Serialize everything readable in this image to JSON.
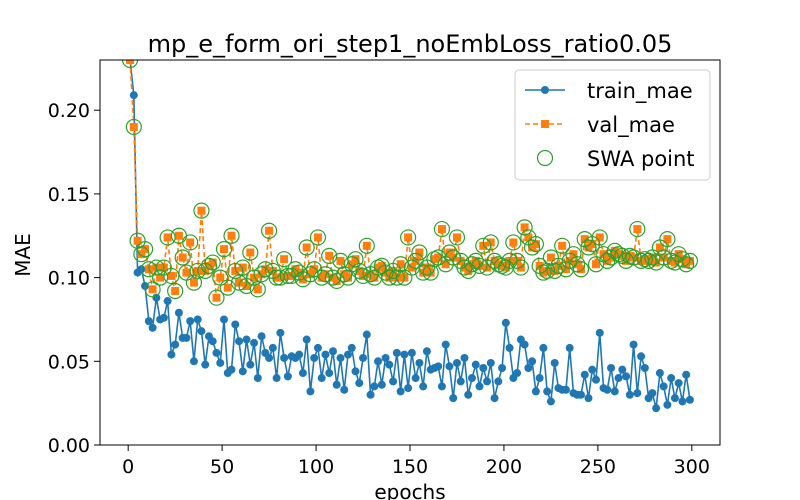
{
  "chart_data": {
    "type": "line",
    "title": "mp_e_form_ori_step1_noEmbLoss_ratio0.05",
    "xlabel": "epochs",
    "ylabel": "MAE",
    "xlim": [
      -15,
      315
    ],
    "ylim": [
      0.0,
      0.23
    ],
    "xticks": [
      0,
      50,
      100,
      150,
      200,
      250,
      300
    ],
    "xtick_labels": [
      "0",
      "50",
      "100",
      "150",
      "200",
      "250",
      "300"
    ],
    "yticks": [
      0.0,
      0.05,
      0.1,
      0.15,
      0.2
    ],
    "ytick_labels": [
      "0.00",
      "0.05",
      "0.10",
      "0.15",
      "0.20"
    ],
    "grid": false,
    "legend_position": "top-right",
    "series": [
      {
        "name": "train_mae",
        "color": "#1f77b4",
        "marker": "circle",
        "line_style": "solid",
        "x": [
          1,
          3,
          5,
          7,
          9,
          11,
          13,
          15,
          17,
          19,
          21,
          23,
          25,
          27,
          29,
          31,
          33,
          35,
          37,
          39,
          41,
          43,
          45,
          47,
          49,
          51,
          53,
          55,
          57,
          59,
          61,
          63,
          65,
          67,
          69,
          71,
          73,
          75,
          77,
          79,
          81,
          83,
          85,
          87,
          89,
          91,
          93,
          95,
          97,
          99,
          101,
          103,
          105,
          107,
          109,
          111,
          113,
          115,
          117,
          119,
          121,
          123,
          125,
          127,
          129,
          131,
          133,
          135,
          137,
          139,
          141,
          143,
          145,
          147,
          149,
          151,
          153,
          155,
          157,
          159,
          161,
          163,
          165,
          167,
          169,
          171,
          173,
          175,
          177,
          179,
          181,
          183,
          185,
          187,
          189,
          191,
          193,
          195,
          197,
          199,
          201,
          203,
          205,
          207,
          209,
          211,
          213,
          215,
          217,
          219,
          221,
          223,
          225,
          227,
          229,
          231,
          233,
          235,
          237,
          239,
          241,
          243,
          245,
          247,
          249,
          251,
          253,
          255,
          257,
          259,
          261,
          263,
          265,
          267,
          269,
          271,
          273,
          275,
          277,
          279,
          281,
          283,
          285,
          287,
          289,
          291,
          293,
          295,
          297,
          299
        ],
        "y": [
          0.23,
          0.209,
          0.103,
          0.105,
          0.095,
          0.074,
          0.07,
          0.088,
          0.075,
          0.076,
          0.086,
          0.054,
          0.06,
          0.079,
          0.064,
          0.064,
          0.074,
          0.05,
          0.075,
          0.068,
          0.048,
          0.065,
          0.062,
          0.055,
          0.049,
          0.075,
          0.043,
          0.045,
          0.072,
          0.062,
          0.044,
          0.063,
          0.048,
          0.061,
          0.04,
          0.065,
          0.055,
          0.052,
          0.058,
          0.04,
          0.067,
          0.052,
          0.041,
          0.053,
          0.052,
          0.054,
          0.043,
          0.063,
          0.032,
          0.052,
          0.058,
          0.04,
          0.054,
          0.043,
          0.056,
          0.036,
          0.052,
          0.033,
          0.054,
          0.058,
          0.044,
          0.037,
          0.052,
          0.066,
          0.03,
          0.035,
          0.05,
          0.036,
          0.052,
          0.048,
          0.038,
          0.055,
          0.032,
          0.054,
          0.034,
          0.055,
          0.04,
          0.049,
          0.035,
          0.056,
          0.045,
          0.046,
          0.047,
          0.035,
          0.06,
          0.047,
          0.028,
          0.049,
          0.038,
          0.052,
          0.03,
          0.04,
          0.048,
          0.035,
          0.046,
          0.038,
          0.049,
          0.028,
          0.038,
          0.046,
          0.073,
          0.058,
          0.04,
          0.043,
          0.063,
          0.06,
          0.046,
          0.05,
          0.032,
          0.04,
          0.058,
          0.032,
          0.026,
          0.049,
          0.034,
          0.033,
          0.033,
          0.058,
          0.031,
          0.03,
          0.03,
          0.042,
          0.028,
          0.045,
          0.039,
          0.067,
          0.034,
          0.033,
          0.046,
          0.032,
          0.04,
          0.045,
          0.041,
          0.03,
          0.06,
          0.031,
          0.053,
          0.046,
          0.028,
          0.031,
          0.022,
          0.043,
          0.035,
          0.024,
          0.04,
          0.028,
          0.037,
          0.026,
          0.042,
          0.027
        ]
      },
      {
        "name": "val_mae",
        "color": "#ff7f0e",
        "marker": "square",
        "line_style": "dashed",
        "x": [
          1,
          3,
          5,
          7,
          9,
          11,
          13,
          15,
          17,
          19,
          21,
          23,
          25,
          27,
          29,
          31,
          33,
          35,
          37,
          39,
          41,
          43,
          45,
          47,
          49,
          51,
          53,
          55,
          57,
          59,
          61,
          63,
          65,
          67,
          69,
          71,
          73,
          75,
          77,
          79,
          81,
          83,
          85,
          87,
          89,
          91,
          93,
          95,
          97,
          99,
          101,
          103,
          105,
          107,
          109,
          111,
          113,
          115,
          117,
          119,
          121,
          123,
          125,
          127,
          129,
          131,
          133,
          135,
          137,
          139,
          141,
          143,
          145,
          147,
          149,
          151,
          153,
          155,
          157,
          159,
          161,
          163,
          165,
          167,
          169,
          171,
          173,
          175,
          177,
          179,
          181,
          183,
          185,
          187,
          189,
          191,
          193,
          195,
          197,
          199,
          201,
          203,
          205,
          207,
          209,
          211,
          213,
          215,
          217,
          219,
          221,
          223,
          225,
          227,
          229,
          231,
          233,
          235,
          237,
          239,
          241,
          243,
          245,
          247,
          249,
          251,
          253,
          255,
          257,
          259,
          261,
          263,
          265,
          267,
          269,
          271,
          273,
          275,
          277,
          279,
          281,
          283,
          285,
          287,
          289,
          291,
          293,
          295,
          297,
          299
        ],
        "y": [
          0.23,
          0.19,
          0.122,
          0.114,
          0.117,
          0.105,
          0.093,
          0.106,
          0.1,
          0.106,
          0.124,
          0.101,
          0.092,
          0.125,
          0.112,
          0.103,
          0.121,
          0.097,
          0.104,
          0.14,
          0.104,
          0.107,
          0.109,
          0.088,
          0.1,
          0.117,
          0.094,
          0.125,
          0.104,
          0.097,
          0.106,
          0.095,
          0.115,
          0.1,
          0.093,
          0.102,
          0.105,
          0.128,
          0.104,
          0.1,
          0.1,
          0.111,
          0.101,
          0.101,
          0.105,
          0.103,
          0.099,
          0.118,
          0.102,
          0.105,
          0.124,
          0.1,
          0.102,
          0.113,
          0.1,
          0.098,
          0.11,
          0.102,
          0.1,
          0.108,
          0.111,
          0.104,
          0.101,
          0.119,
          0.102,
          0.1,
          0.106,
          0.107,
          0.103,
          0.1,
          0.104,
          0.1,
          0.108,
          0.1,
          0.124,
          0.106,
          0.11,
          0.115,
          0.103,
          0.106,
          0.103,
          0.111,
          0.112,
          0.129,
          0.108,
          0.115,
          0.112,
          0.124,
          0.11,
          0.106,
          0.104,
          0.108,
          0.11,
          0.107,
          0.119,
          0.106,
          0.121,
          0.11,
          0.108,
          0.107,
          0.106,
          0.11,
          0.121,
          0.11,
          0.106,
          0.13,
          0.124,
          0.118,
          0.12,
          0.107,
          0.103,
          0.104,
          0.112,
          0.104,
          0.107,
          0.119,
          0.105,
          0.11,
          0.114,
          0.108,
          0.105,
          0.123,
          0.118,
          0.12,
          0.108,
          0.124,
          0.114,
          0.11,
          0.112,
          0.116,
          0.114,
          0.113,
          0.11,
          0.113,
          0.112,
          0.129,
          0.11,
          0.111,
          0.11,
          0.112,
          0.109,
          0.118,
          0.112,
          0.123,
          0.11,
          0.109,
          0.114,
          0.111,
          0.108,
          0.11
        ]
      },
      {
        "name": "SWA point",
        "color": "#2ca02c",
        "marker": "hollow-circle",
        "line_style": "none",
        "follows": "val_mae"
      }
    ]
  }
}
